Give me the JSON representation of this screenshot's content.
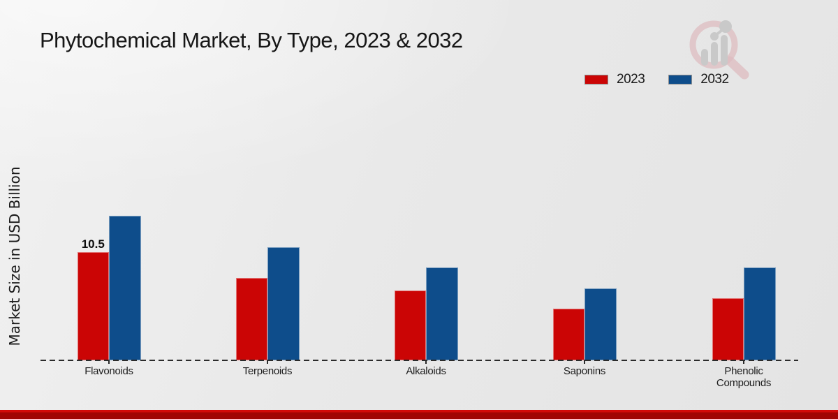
{
  "title": "Phytochemical Market, By Type, 2023 & 2032",
  "ylabel": "Market Size in USD Billion",
  "legend": {
    "items": [
      {
        "label": "2023",
        "color": "#cb0505"
      },
      {
        "label": "2032",
        "color": "#0e4d8b"
      }
    ]
  },
  "logo_icon": "magnifier-bar-chart-logo",
  "colors": {
    "series_2023": "#cb0505",
    "series_2032": "#0e4d8b",
    "axis": "#2b2b2b",
    "background": "#e9e9e9",
    "bottom_bar_top": "#d20a0a",
    "bottom_bar_bottom": "#a10404"
  },
  "chart_data": {
    "type": "bar",
    "title": "Phytochemical Market, By Type, 2023 & 2032",
    "ylabel": "Market Size in USD Billion",
    "xlabel": "",
    "categories": [
      "Flavonoids",
      "Terpenoids",
      "Alkaloids",
      "Saponins",
      "Phenolic Compounds"
    ],
    "series": [
      {
        "name": "2023",
        "color": "#cb0505",
        "values": [
          10.5,
          8.0,
          6.8,
          5.0,
          6.0
        ]
      },
      {
        "name": "2032",
        "color": "#0e4d8b",
        "values": [
          14.0,
          11.0,
          9.0,
          7.0,
          9.0
        ]
      }
    ],
    "ylim": [
      0,
      16
    ],
    "grid": false,
    "y_axis_ticks_visible": false,
    "legend_position": "top-right",
    "data_labels": [
      {
        "series_index": 0,
        "category_index": 0,
        "text": "10.5"
      }
    ]
  }
}
